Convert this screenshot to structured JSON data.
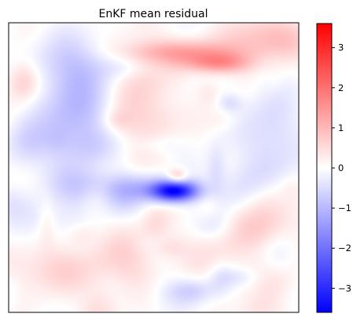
{
  "chart_data": {
    "type": "heatmap",
    "title": "EnKF mean residual",
    "xlabel": "",
    "ylabel": "",
    "colormap": "bwr",
    "colors": {
      "low": "#0000ff",
      "mid": "#ffffff",
      "high": "#ff0000"
    },
    "vmin": -3.6,
    "vmax": 3.6,
    "colorbar": {
      "ticks": [
        3,
        2,
        1,
        0,
        -1,
        -2,
        -3
      ],
      "tick_labels": [
        "3",
        "2",
        "1",
        "0",
        "−1",
        "−2",
        "−3"
      ]
    },
    "axes_ticks_visible": false,
    "grid": false,
    "features": [
      {
        "u": 0.57,
        "v": 0.58,
        "value": -3.3,
        "su": 0.055,
        "sv": 0.025,
        "label": "strong negative core"
      },
      {
        "u": 0.46,
        "v": 0.57,
        "value": -0.8,
        "su": 0.1,
        "sv": 0.035
      },
      {
        "u": 0.58,
        "v": 0.53,
        "value": 1.0,
        "su": 0.025,
        "sv": 0.02
      },
      {
        "u": 0.23,
        "v": 0.33,
        "value": -1.0,
        "su": 0.09,
        "sv": 0.12
      },
      {
        "u": 0.23,
        "v": 0.14,
        "value": -0.6,
        "su": 0.1,
        "sv": 0.07
      },
      {
        "u": 0.06,
        "v": 0.42,
        "value": -0.5,
        "su": 0.05,
        "sv": 0.06
      },
      {
        "u": 0.62,
        "v": 0.1,
        "value": 1.2,
        "su": 0.14,
        "sv": 0.03
      },
      {
        "u": 0.72,
        "v": 0.14,
        "value": 1.4,
        "su": 0.08,
        "sv": 0.025
      },
      {
        "u": 0.45,
        "v": 0.25,
        "value": 0.6,
        "su": 0.08,
        "sv": 0.14
      },
      {
        "u": 0.9,
        "v": 0.4,
        "value": -0.6,
        "su": 0.07,
        "sv": 0.12
      },
      {
        "u": 0.78,
        "v": 0.58,
        "value": -0.4,
        "su": 0.1,
        "sv": 0.06
      },
      {
        "u": 0.9,
        "v": 0.05,
        "value": 1.0,
        "su": 0.1,
        "sv": 0.05
      },
      {
        "u": 0.05,
        "v": 0.2,
        "value": 0.8,
        "su": 0.04,
        "sv": 0.05
      },
      {
        "u": 0.15,
        "v": 0.85,
        "value": 0.6,
        "su": 0.12,
        "sv": 0.06
      },
      {
        "u": 0.4,
        "v": 0.8,
        "value": 0.5,
        "su": 0.08,
        "sv": 0.07
      },
      {
        "u": 0.72,
        "v": 0.8,
        "value": 0.4,
        "su": 0.08,
        "sv": 0.08
      },
      {
        "u": 0.88,
        "v": 0.7,
        "value": 0.7,
        "su": 0.08,
        "sv": 0.06
      },
      {
        "u": 0.12,
        "v": 0.68,
        "value": -0.4,
        "su": 0.07,
        "sv": 0.05
      },
      {
        "u": 0.6,
        "v": 0.93,
        "value": -0.3,
        "su": 0.07,
        "sv": 0.04
      },
      {
        "u": 0.38,
        "v": 0.6,
        "value": -0.5,
        "su": 0.05,
        "sv": 0.05
      },
      {
        "u": 0.88,
        "v": 0.6,
        "value": 0.4,
        "su": 0.05,
        "sv": 0.05
      }
    ]
  }
}
